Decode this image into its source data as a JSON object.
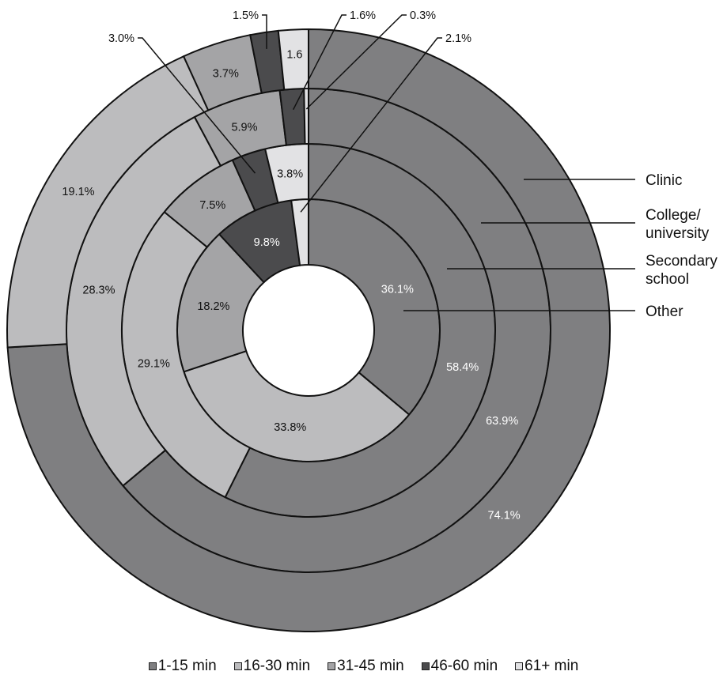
{
  "chart_data": {
    "type": "nested-donut",
    "rings": [
      {
        "name": "Other",
        "values": [
          36.1,
          33.8,
          18.2,
          9.8,
          2.1
        ],
        "labels": [
          "36.1%",
          "33.8%",
          "18.2%",
          "9.8%",
          ""
        ]
      },
      {
        "name": "Secondary school",
        "values": [
          58.4,
          29.1,
          7.5,
          3.0,
          3.8
        ],
        "labels": [
          "58.4%",
          "29.1%",
          "7.5%",
          "",
          "3.8%"
        ]
      },
      {
        "name": "College/ university",
        "values": [
          63.9,
          28.3,
          5.9,
          1.6,
          0.3
        ],
        "labels": [
          "63.9%",
          "28.3%",
          "5.9%",
          "",
          ""
        ]
      },
      {
        "name": "Clinic",
        "values": [
          74.1,
          19.1,
          3.7,
          1.5,
          1.6
        ],
        "labels": [
          "74.1%",
          "19.1%",
          "3.7%",
          "",
          "1.6"
        ]
      }
    ],
    "ring_labels": [
      {
        "text": [
          "Other"
        ]
      },
      {
        "text": [
          "Secondary",
          "school"
        ]
      },
      {
        "text": [
          "College/",
          "university"
        ]
      },
      {
        "text": [
          "Clinic"
        ]
      }
    ],
    "callouts": [
      "2.1%",
      "3.0%",
      "1.6%",
      "0.3%",
      "1.5%"
    ],
    "categories": [
      "1-15 min",
      "16-30 min",
      "31-45 min",
      "46-60 min",
      "61+ min"
    ],
    "colors": [
      "#7f7f81",
      "#bcbcbe",
      "#a4a4a6",
      "#4b4b4d",
      "#e2e2e4"
    ],
    "legend_position": "bottom"
  }
}
